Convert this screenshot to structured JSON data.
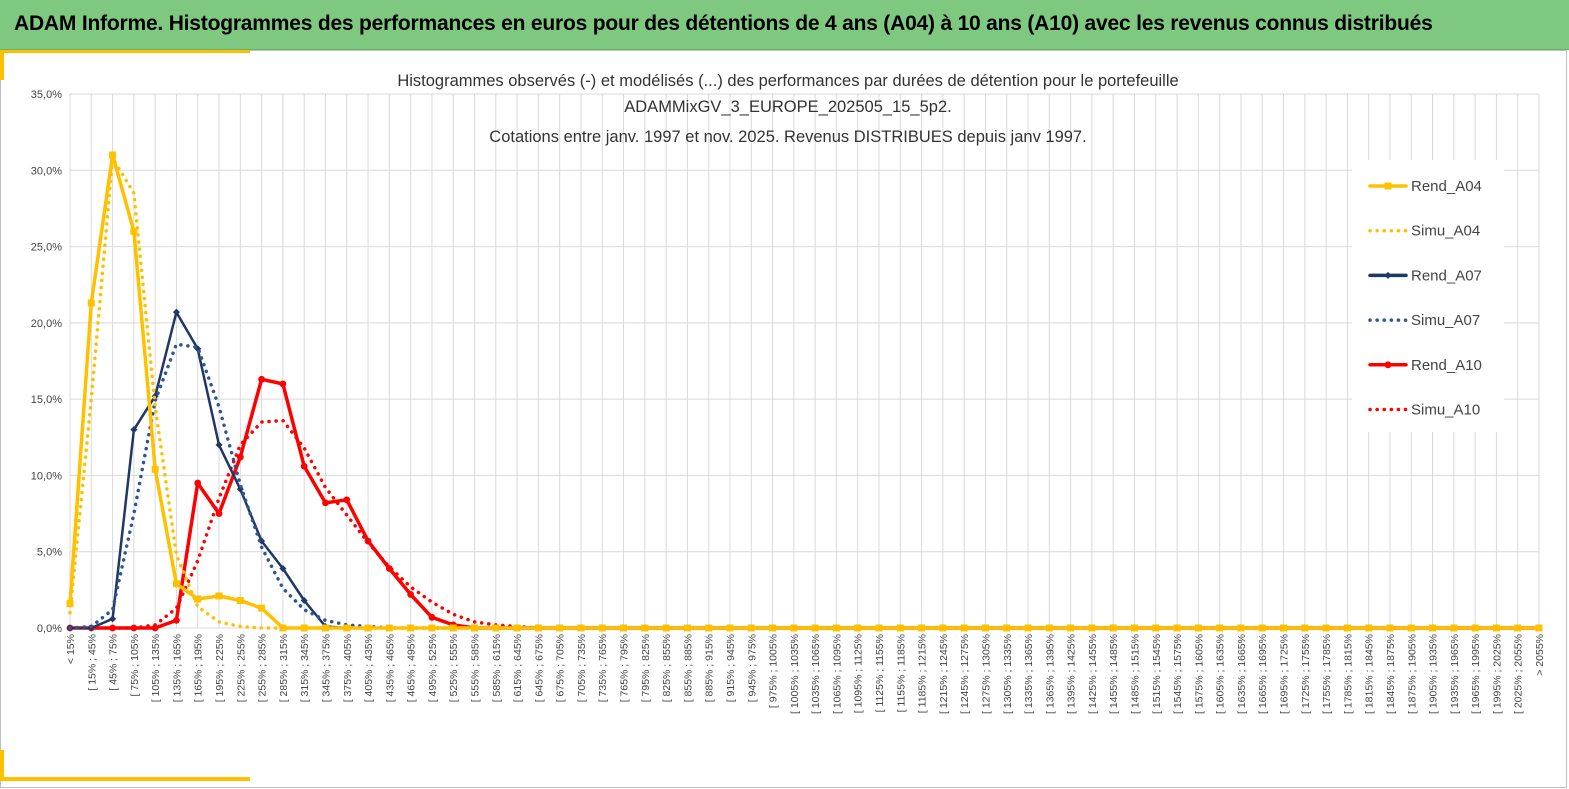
{
  "banner": {
    "title": "ADAM Informe. Histogrammes des performances en euros pour des détentions de 4 ans (A04) à 10 ans (A10) avec les revenus connus distribués"
  },
  "colors": {
    "banner": "#7ec87f",
    "accent": "#ffc000",
    "a04": "#ffc000",
    "a07": "#1f3864",
    "a07_simu": "#2e5597",
    "a10": "#ff0000",
    "grid": "#d9d9d9"
  },
  "chart_data": {
    "type": "line",
    "title_lines": [
      "Histogrammes observés (-) et modélisés (...) des performances par durées de détention pour le portefeuille",
      "ADAMMixGV_3_EUROPE_202505_15_5p2.",
      "Cotations entre janv. 1997 et nov. 2025. Revenus DISTRIBUES depuis janv 1997."
    ],
    "ylim": [
      0,
      35
    ],
    "y_ticks": [
      0,
      5,
      10,
      15,
      20,
      25,
      30,
      35
    ],
    "y_tick_labels": [
      "0,0%",
      "5,0%",
      "10,0%",
      "15,0%",
      "20,0%",
      "25,0%",
      "30,0%",
      "35,0%"
    ],
    "grid": true,
    "legend_position": "right",
    "categories": [
      "< 15%",
      "[ 15% ; 45%",
      "[ 45% ; 75%",
      "[ 75% ; 105%",
      "[ 105% ; 135%",
      "[ 135% ; 165%",
      "[ 165% ; 195%",
      "[ 195% ; 225%",
      "[ 225% ; 255%",
      "[ 255% ; 285%",
      "[ 285% ; 315%",
      "[ 315% ; 345%",
      "[ 345% ; 375%",
      "[ 375% ; 405%",
      "[ 405% ; 435%",
      "[ 435% ; 465%",
      "[ 465% ; 495%",
      "[ 495% ; 525%",
      "[ 525% ; 555%",
      "[ 555% ; 585%",
      "[ 585% ; 615%",
      "[ 615% ; 645%",
      "[ 645% ; 675%",
      "[ 675% ; 705%",
      "[ 705% ; 735%",
      "[ 735% ; 765%",
      "[ 765% ; 795%",
      "[ 795% ; 825%",
      "[ 825% ; 855%",
      "[ 855% ; 885%",
      "[ 885% ; 915%",
      "[ 915% ; 945%",
      "[ 945% ; 975%",
      "[ 975% ; 1005%",
      "[ 1005% ; 1035%",
      "[ 1035% ; 1065%",
      "[ 1065% ; 1095%",
      "[ 1095% ; 1125%",
      "[ 1125% ; 1155%",
      "[ 1155% ; 1185%",
      "[ 1185% ; 1215%",
      "[ 1215% ; 1245%",
      "[ 1245% ; 1275%",
      "[ 1275% ; 1305%",
      "[ 1305% ; 1335%",
      "[ 1335% ; 1365%",
      "[ 1365% ; 1395%",
      "[ 1395% ; 1425%",
      "[ 1425% ; 1455%",
      "[ 1455% ; 1485%",
      "[ 1485% ; 1515%",
      "[ 1515% ; 1545%",
      "[ 1545% ; 1575%",
      "[ 1575% ; 1605%",
      "[ 1605% ; 1635%",
      "[ 1635% ; 1665%",
      "[ 1665% ; 1695%",
      "[ 1695% ; 1725%",
      "[ 1725% ; 1755%",
      "[ 1755% ; 1785%",
      "[ 1785% ; 1815%",
      "[ 1815% ; 1845%",
      "[ 1845% ; 1875%",
      "[ 1875% ; 1905%",
      "[ 1905% ; 1935%",
      "[ 1935% ; 1965%",
      "[ 1965% ; 1995%",
      "[ 1995% ; 2025%",
      "[ 2025% ; 2055%",
      "> 2055%"
    ],
    "series": [
      {
        "name": "Rend_A04",
        "color": "#ffc000",
        "dash": "solid",
        "marker": "square",
        "values": [
          1.6,
          21.3,
          31.0,
          26.0,
          10.4,
          2.9,
          1.9,
          2.1,
          1.8,
          1.3,
          0,
          0,
          0,
          0,
          0,
          0,
          0,
          0,
          0,
          0,
          0,
          0,
          0,
          0,
          0,
          0,
          0,
          0,
          0,
          0,
          0,
          0,
          0,
          0,
          0,
          0,
          0,
          0,
          0,
          0,
          0,
          0,
          0,
          0,
          0,
          0,
          0,
          0,
          0,
          0,
          0,
          0,
          0,
          0,
          0,
          0,
          0,
          0,
          0,
          0,
          0,
          0,
          0,
          0,
          0,
          0,
          0,
          0,
          0,
          0
        ]
      },
      {
        "name": "Simu_A04",
        "color": "#ffc000",
        "dash": "dotted",
        "marker": "none",
        "values": [
          1.0,
          15.0,
          30.8,
          28.5,
          14.5,
          4.8,
          1.4,
          0.4,
          0.1,
          0,
          0,
          0,
          0,
          0,
          0,
          0,
          0,
          0,
          0,
          0,
          0,
          0,
          0,
          0,
          0,
          0,
          0,
          0,
          0,
          0,
          0,
          0,
          0,
          0,
          0,
          0,
          0,
          0,
          0,
          0,
          0,
          0,
          0,
          0,
          0,
          0,
          0,
          0,
          0,
          0,
          0,
          0,
          0,
          0,
          0,
          0,
          0,
          0,
          0,
          0,
          0,
          0,
          0,
          0,
          0,
          0,
          0,
          0,
          0,
          0
        ]
      },
      {
        "name": "Rend_A07",
        "color": "#1f3864",
        "dash": "solid",
        "marker": "diamond",
        "values": [
          0,
          0,
          0.6,
          13.0,
          15.2,
          20.7,
          18.3,
          12.0,
          9.1,
          5.7,
          3.9,
          1.8,
          0.1,
          0,
          0,
          0,
          0,
          0,
          0,
          0,
          0,
          0,
          0,
          0,
          0,
          0,
          0,
          0,
          0,
          0,
          0,
          0,
          0,
          0,
          0,
          0,
          0,
          0,
          0,
          0,
          0,
          0,
          0,
          0,
          0,
          0,
          0,
          0,
          0,
          0,
          0,
          0,
          0,
          0,
          0,
          0,
          0,
          0,
          0,
          0,
          0,
          0,
          0,
          0,
          0,
          0,
          0,
          0,
          0,
          0
        ]
      },
      {
        "name": "Simu_A07",
        "color": "#2e5597",
        "dash": "dotted",
        "marker": "none",
        "values": [
          0,
          0.1,
          1.2,
          7.5,
          14.9,
          18.6,
          18.4,
          14.5,
          9.4,
          5.3,
          2.6,
          1.2,
          0.5,
          0.2,
          0.1,
          0,
          0,
          0,
          0,
          0,
          0,
          0,
          0,
          0,
          0,
          0,
          0,
          0,
          0,
          0,
          0,
          0,
          0,
          0,
          0,
          0,
          0,
          0,
          0,
          0,
          0,
          0,
          0,
          0,
          0,
          0,
          0,
          0,
          0,
          0,
          0,
          0,
          0,
          0,
          0,
          0,
          0,
          0,
          0,
          0,
          0,
          0,
          0,
          0,
          0,
          0,
          0,
          0,
          0,
          0
        ]
      },
      {
        "name": "Rend_A10",
        "color": "#ff0000",
        "dash": "solid",
        "marker": "circle",
        "values": [
          0,
          0,
          0,
          0,
          0,
          0.5,
          9.5,
          7.5,
          11.2,
          16.3,
          16.0,
          10.6,
          8.2,
          8.4,
          5.7,
          3.9,
          2.2,
          0.7,
          0.2,
          0,
          0,
          0,
          0,
          0,
          0,
          0,
          0,
          0,
          0,
          0,
          0,
          0,
          0,
          0,
          0,
          0,
          0,
          0,
          0,
          0,
          0,
          0,
          0,
          0,
          0,
          0,
          0,
          0,
          0,
          0,
          0,
          0,
          0,
          0,
          0,
          0,
          0,
          0,
          0,
          0,
          0,
          0,
          0,
          0,
          0,
          0,
          0,
          0,
          0,
          0
        ]
      },
      {
        "name": "Simu_A10",
        "color": "#ff0000",
        "dash": "dotted",
        "marker": "none",
        "values": [
          0,
          0,
          0,
          0,
          0.2,
          1.3,
          4.4,
          8.5,
          12.0,
          13.5,
          13.6,
          11.8,
          9.2,
          7.4,
          5.6,
          4.0,
          2.7,
          1.7,
          0.9,
          0.4,
          0.2,
          0.1,
          0,
          0,
          0,
          0,
          0,
          0,
          0,
          0,
          0,
          0,
          0,
          0,
          0,
          0,
          0,
          0,
          0,
          0,
          0,
          0,
          0,
          0,
          0,
          0,
          0,
          0,
          0,
          0,
          0,
          0,
          0,
          0,
          0,
          0,
          0,
          0,
          0,
          0,
          0,
          0,
          0,
          0,
          0,
          0,
          0,
          0,
          0,
          0
        ]
      }
    ]
  }
}
